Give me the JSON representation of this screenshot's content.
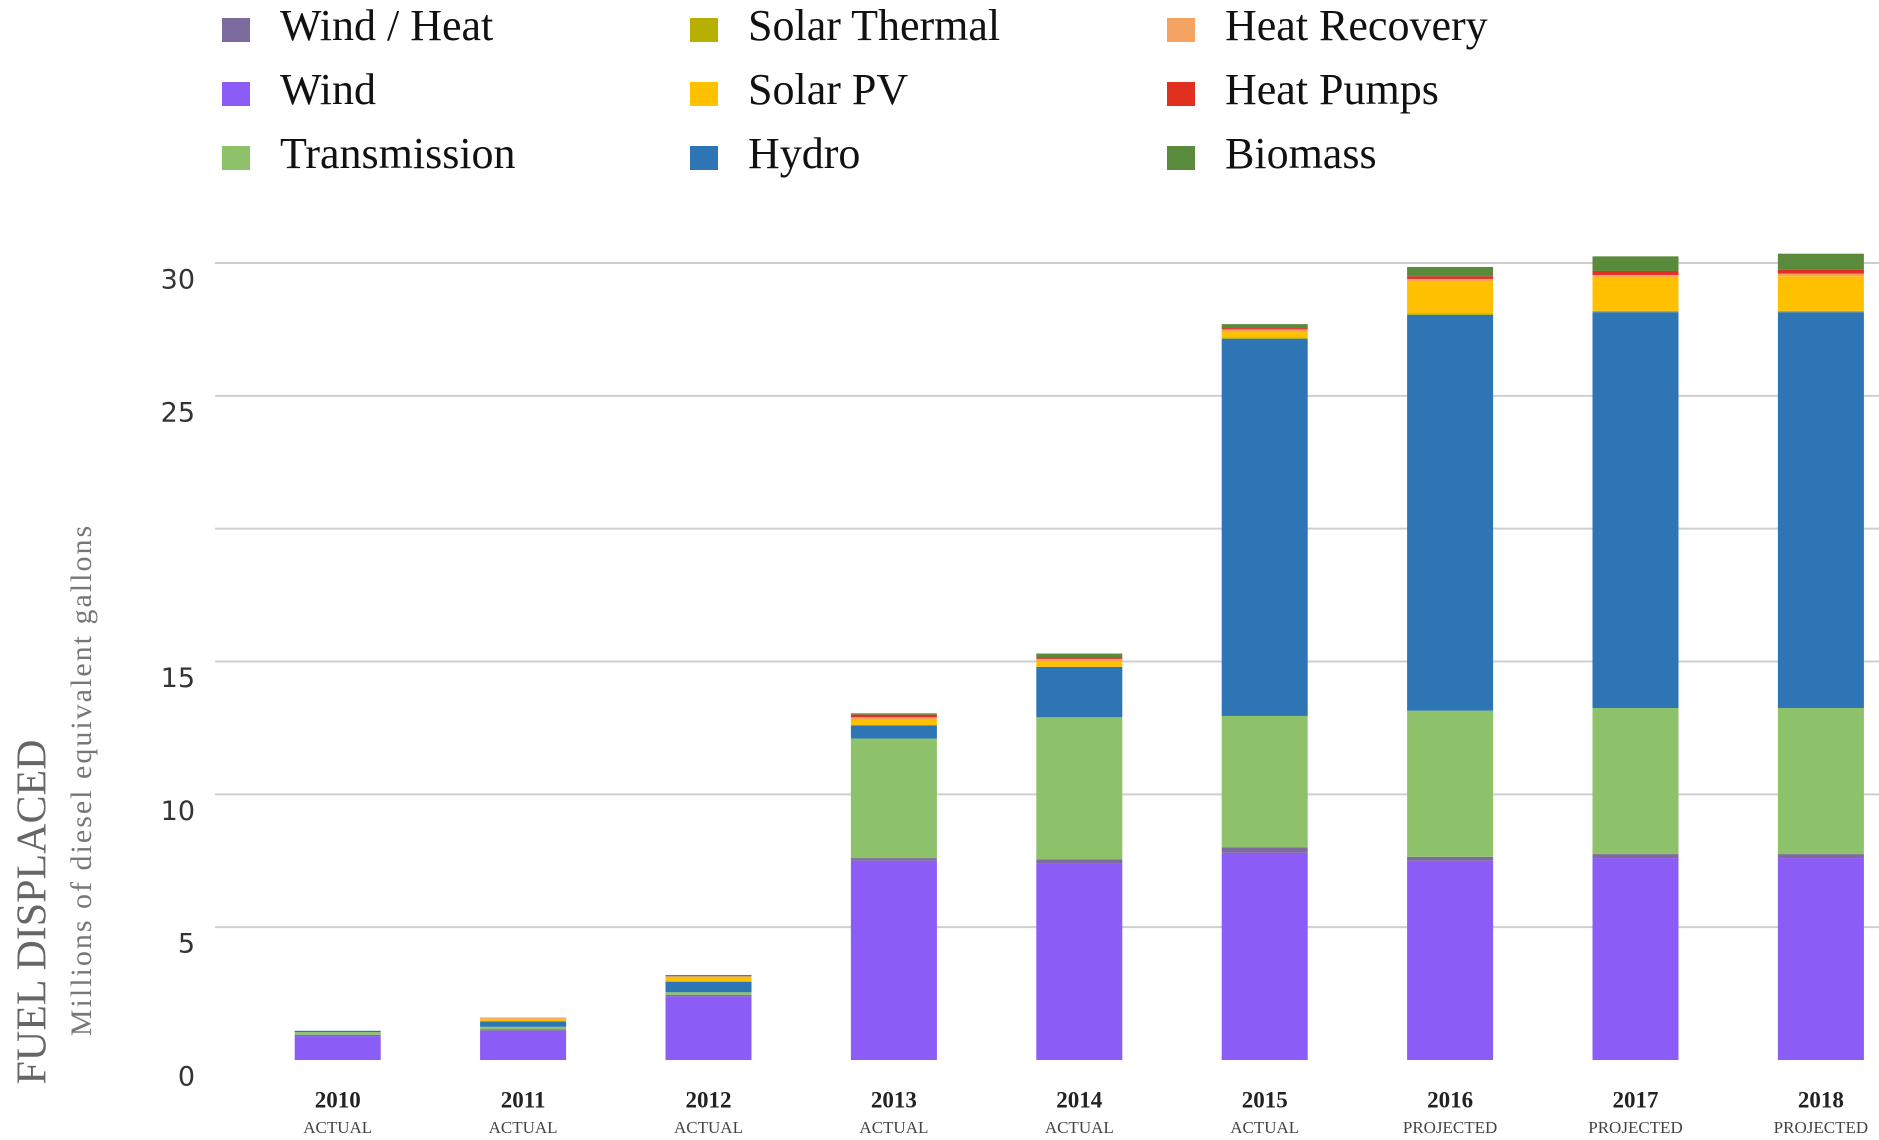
{
  "chart_data": {
    "type": "stacked_bar",
    "y_title": "FUEL DISPLACED",
    "y_subtitle": "Millions of diesel equivalent gallons",
    "categories": [
      "2010",
      "2011",
      "2012",
      "2013",
      "2014",
      "2015",
      "2016",
      "2017",
      "2018"
    ],
    "sublabels": [
      "ACTUAL",
      "ACTUAL",
      "ACTUAL",
      "ACTUAL",
      "ACTUAL",
      "ACTUAL",
      "PROJECTED",
      "PROJECTED",
      "PROJECTED"
    ],
    "series": [
      {
        "name": "Wind",
        "color": "#8b5cf6",
        "values": [
          0.9,
          1.1,
          2.4,
          7.5,
          7.4,
          7.8,
          7.5,
          7.6,
          7.6
        ]
      },
      {
        "name": "Wind / Heat",
        "color": "#7d6a9e",
        "values": [
          0.05,
          0.05,
          0.05,
          0.1,
          0.15,
          0.2,
          0.15,
          0.15,
          0.15
        ]
      },
      {
        "name": "Transmission",
        "color": "#8dc26b",
        "values": [
          0.1,
          0.1,
          0.1,
          4.5,
          5.35,
          4.95,
          5.5,
          5.5,
          5.5
        ]
      },
      {
        "name": "Hydro",
        "color": "#2e75b6",
        "values": [
          0.05,
          0.2,
          0.4,
          0.5,
          1.9,
          14.2,
          14.9,
          14.9,
          14.9
        ]
      },
      {
        "name": "Solar Thermal",
        "color": "#b8b000",
        "values": [
          0,
          0,
          0,
          0,
          0,
          0.05,
          0.05,
          0.05,
          0.05
        ]
      },
      {
        "name": "Solar PV",
        "color": "#ffc000",
        "values": [
          0,
          0.1,
          0.15,
          0.2,
          0.2,
          0.2,
          1.2,
          1.25,
          1.3
        ]
      },
      {
        "name": "Heat Recovery",
        "color": "#f4a460",
        "values": [
          0,
          0.05,
          0.05,
          0.1,
          0.1,
          0.1,
          0.1,
          0.1,
          0.1
        ]
      },
      {
        "name": "Heat Pumps",
        "color": "#e03020",
        "values": [
          0,
          0,
          0,
          0.1,
          0.05,
          0.05,
          0.1,
          0.15,
          0.15
        ]
      },
      {
        "name": "Biomass",
        "color": "#5a8a3c",
        "values": [
          0,
          0,
          0.05,
          0.05,
          0.15,
          0.15,
          0.35,
          0.55,
          0.6
        ]
      }
    ],
    "ylim": [
      0,
      31
    ],
    "yticks": [
      0,
      5,
      10,
      15,
      25,
      30
    ],
    "grid": [
      5,
      10,
      15,
      20,
      25,
      30
    ]
  }
}
